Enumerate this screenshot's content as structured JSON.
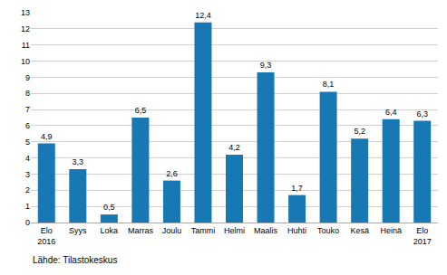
{
  "chart_data": {
    "type": "bar",
    "categories": [
      "Elo\n2016",
      "Syys",
      "Loka",
      "Marras",
      "Joulu",
      "Tammi",
      "Helmi",
      "Maalis",
      "Huhti",
      "Touko",
      "Kesä",
      "Heinä",
      "Elo\n2017"
    ],
    "values": [
      4.9,
      3.3,
      0.5,
      6.5,
      2.6,
      12.4,
      4.2,
      9.3,
      1.7,
      8.1,
      5.2,
      6.4,
      6.3
    ],
    "value_labels": [
      "4,9",
      "3,3",
      "0,5",
      "6,5",
      "2,6",
      "12,4",
      "4,2",
      "9,3",
      "1,7",
      "8,1",
      "5,2",
      "6,4",
      "6,3"
    ],
    "data_labels": true,
    "color": "#1878b4",
    "ylim": [
      0,
      13
    ],
    "yticks": [
      0,
      1,
      2,
      3,
      4,
      5,
      6,
      7,
      8,
      9,
      10,
      11,
      12,
      13
    ],
    "grid": true,
    "annotations": [
      "Lähde: Tilastokeskus"
    ]
  }
}
